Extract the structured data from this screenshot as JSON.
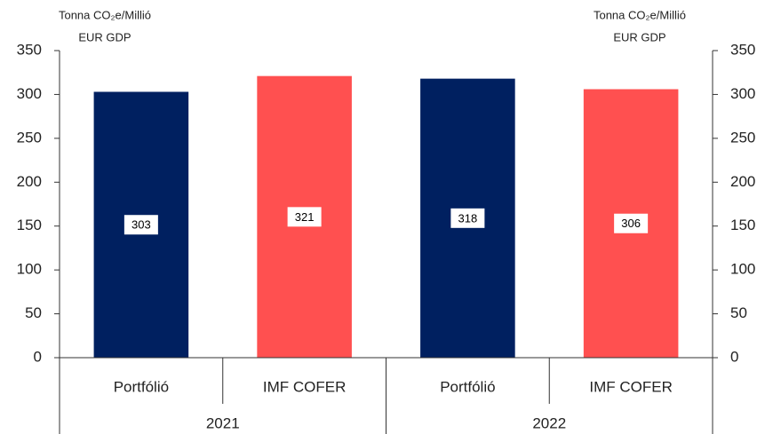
{
  "chart_data": {
    "type": "bar",
    "y_label": [
      "Tonna CO₂e/Millió",
      "EUR GDP"
    ],
    "y2_label": [
      "Tonna CO₂e/Millió",
      "EUR GDP"
    ],
    "categories": [
      "Portfólió",
      "IMF COFER",
      "Portfólió",
      "IMF COFER"
    ],
    "groups": [
      "2021",
      "2022"
    ],
    "values": [
      303,
      321,
      318,
      306
    ],
    "colors": [
      "#002060",
      "#ff5050",
      "#002060",
      "#ff5050"
    ],
    "ylim": [
      0,
      350
    ],
    "yticks": [
      0,
      50,
      100,
      150,
      200,
      250,
      300,
      350
    ],
    "y2lim": [
      0,
      350
    ],
    "y2ticks": [
      0,
      50,
      100,
      150,
      200,
      250,
      300,
      350
    ],
    "grid": false
  }
}
